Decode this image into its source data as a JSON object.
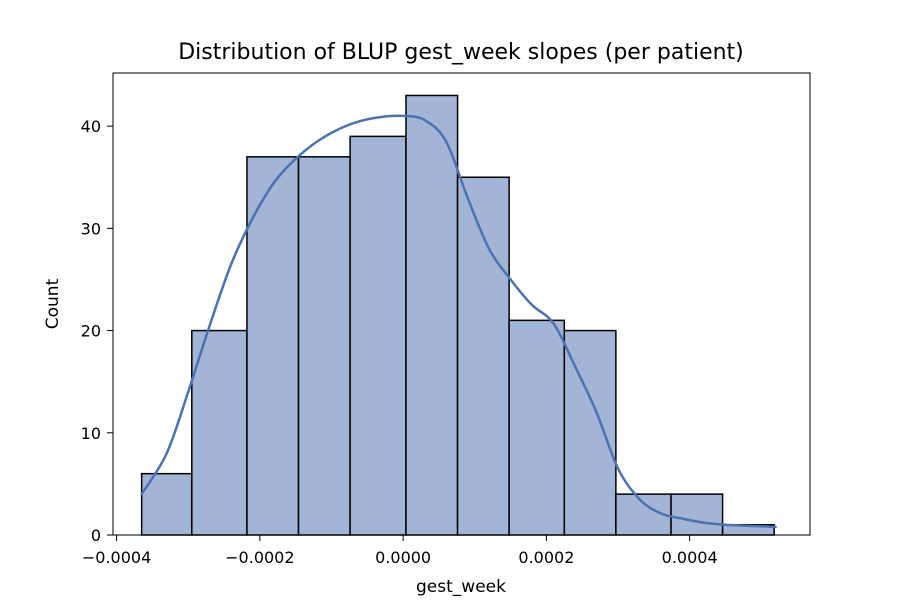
{
  "chart_data": {
    "type": "bar",
    "title": "Distribution of BLUP gest_week slopes (per patient)",
    "xlabel": "gest_week",
    "ylabel": "Count",
    "xlim": [
      -0.000405,
      0.000568
    ],
    "ylim": [
      0,
      45.2
    ],
    "xticks": [
      -0.0004,
      -0.0002,
      0.0,
      0.0002,
      0.0004
    ],
    "xtick_labels": [
      "−0.0004",
      "−0.0002",
      "0.0000",
      "0.0002",
      "0.0004"
    ],
    "yticks": [
      0,
      10,
      20,
      30,
      40
    ],
    "ytick_labels": [
      "0",
      "10",
      "20",
      "30",
      "40"
    ],
    "bins": [
      {
        "x0": -0.000365,
        "x1": -0.000295,
        "count": 6
      },
      {
        "x0": -0.000295,
        "x1": -0.000218,
        "count": 20
      },
      {
        "x0": -0.000218,
        "x1": -0.000146,
        "count": 37
      },
      {
        "x0": -0.000146,
        "x1": -7.4e-05,
        "count": 37
      },
      {
        "x0": -7.4e-05,
        "x1": 4e-06,
        "count": 39
      },
      {
        "x0": 4e-06,
        "x1": 7.6e-05,
        "count": 43
      },
      {
        "x0": 7.6e-05,
        "x1": 0.000148,
        "count": 35
      },
      {
        "x0": 0.000148,
        "x1": 0.000225,
        "count": 21
      },
      {
        "x0": 0.000225,
        "x1": 0.000297,
        "count": 20
      },
      {
        "x0": 0.000297,
        "x1": 0.000374,
        "count": 4
      },
      {
        "x0": 0.000374,
        "x1": 0.000446,
        "count": 4
      },
      {
        "x0": 0.000446,
        "x1": 0.000518,
        "count": 1
      }
    ],
    "kde": {
      "x": [
        -0.000365,
        -0.00033,
        -0.0003,
        -0.00027,
        -0.00024,
        -0.00021,
        -0.00018,
        -0.00015,
        -0.00012,
        -9e-05,
        -6e-05,
        -3e-05,
        0.0,
        3e-05,
        6e-05,
        9e-05,
        0.00012,
        0.00015,
        0.00018,
        0.00021,
        0.00024,
        0.00027,
        0.0003,
        0.00033,
        0.00036,
        0.00039,
        0.00042,
        0.00045,
        0.00048,
        0.00052
      ],
      "y": [
        4,
        8,
        14,
        20.5,
        26.5,
        31,
        34.5,
        36.8,
        38.5,
        39.7,
        40.5,
        40.9,
        41,
        40.6,
        38.5,
        33,
        28,
        25,
        22.5,
        20.7,
        16.5,
        12,
        6.5,
        3.5,
        2.1,
        1.6,
        1.2,
        1.0,
        0.9,
        0.8
      ]
    },
    "bar_color": "#a3b5d7",
    "bar_edge_color": "#000000",
    "line_color": "#4c72b0",
    "grid": false,
    "legend": "none"
  }
}
